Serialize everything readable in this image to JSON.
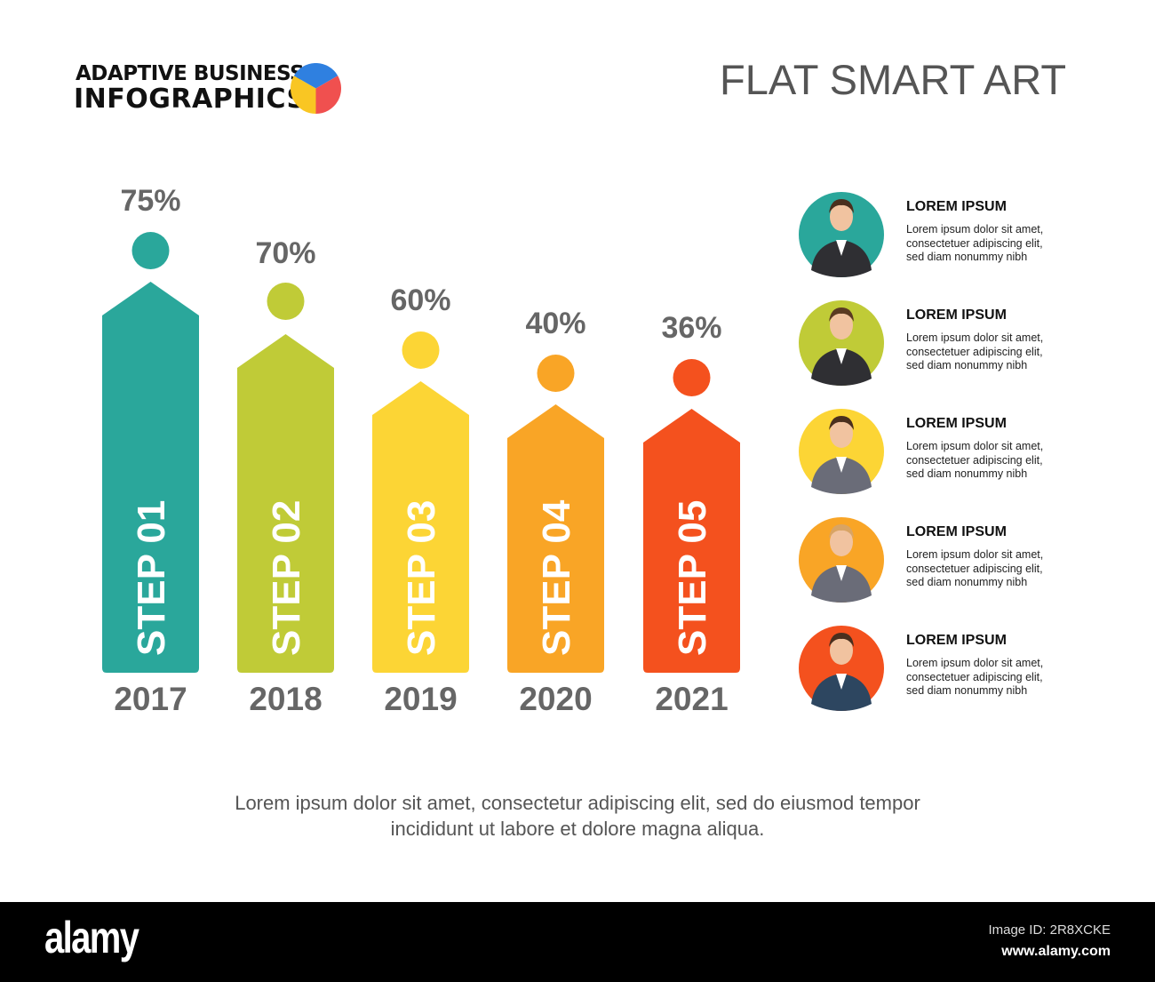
{
  "logo": {
    "line1": "ADAPTIVE BUSINESS",
    "line2": "INFOGRAPHICS",
    "pie_colors": [
      "#2f80e0",
      "#f0504f",
      "#f9c623"
    ]
  },
  "title": "FLAT SMART ART",
  "chart_data": {
    "type": "bar",
    "categories": [
      "2017",
      "2018",
      "2019",
      "2020",
      "2021"
    ],
    "values": [
      75,
      70,
      60,
      40,
      36
    ],
    "value_labels": [
      "75%",
      "70%",
      "60%",
      "40%",
      "36%"
    ],
    "bar_labels": [
      "STEP 01",
      "STEP 02",
      "STEP 03",
      "STEP 04",
      "STEP 05"
    ],
    "colors": [
      "#2aa79b",
      "#c0cb37",
      "#fcd535",
      "#f9a526",
      "#f4511e"
    ],
    "title": "",
    "xlabel": "",
    "ylabel": ""
  },
  "people": [
    {
      "heading": "LOREM IPSUM",
      "text": [
        "Lorem ipsum dolor sit amet,",
        "consectetuer adipiscing elit,",
        "sed diam nonummy nibh"
      ],
      "color": "#2aa79b"
    },
    {
      "heading": "LOREM IPSUM",
      "text": [
        "Lorem ipsum dolor sit amet,",
        "consectetuer adipiscing elit,",
        "sed diam nonummy nibh"
      ],
      "color": "#c0cb37"
    },
    {
      "heading": "LOREM IPSUM",
      "text": [
        "Lorem ipsum dolor sit amet,",
        "consectetuer adipiscing elit,",
        "sed diam nonummy nibh"
      ],
      "color": "#fcd535"
    },
    {
      "heading": "LOREM IPSUM",
      "text": [
        "Lorem ipsum dolor sit amet,",
        "consectetuer adipiscing elit,",
        "sed diam nonummy nibh"
      ],
      "color": "#f9a526"
    },
    {
      "heading": "LOREM IPSUM",
      "text": [
        "Lorem ipsum dolor sit amet,",
        "consectetuer adipiscing elit,",
        "sed diam nonummy nibh"
      ],
      "color": "#f4511e"
    }
  ],
  "caption": [
    "Lorem ipsum dolor sit amet, consectetur adipiscing elit, sed do eiusmod tempor",
    "incididunt ut labore et dolore magna aliqua."
  ],
  "footer": {
    "brand": "alamy",
    "image_id": "Image ID: 2R8XCKE",
    "url": "www.alamy.com"
  }
}
